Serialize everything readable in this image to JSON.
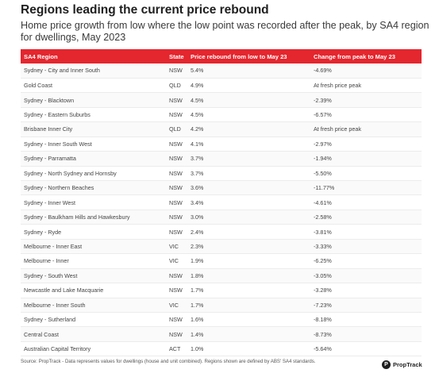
{
  "chart_data": {
    "type": "table",
    "title": "Regions leading the current price rebound",
    "subtitle": "Home price growth from low where the low point was recorded after the peak, by SA4 region for dwellings, May 2023",
    "columns": [
      "SA4 Region",
      "State",
      "Price rebound from low to May 23",
      "Change from peak to May 23"
    ],
    "rows": [
      {
        "region": "Sydney - City and Inner South",
        "state": "NSW",
        "rebound": "5.4%",
        "change": "-4.69%"
      },
      {
        "region": "Gold Coast",
        "state": "QLD",
        "rebound": "4.9%",
        "change": "At fresh price peak"
      },
      {
        "region": "Sydney - Blacktown",
        "state": "NSW",
        "rebound": "4.5%",
        "change": "-2.39%"
      },
      {
        "region": "Sydney - Eastern Suburbs",
        "state": "NSW",
        "rebound": "4.5%",
        "change": "-6.57%"
      },
      {
        "region": "Brisbane Inner City",
        "state": "QLD",
        "rebound": "4.2%",
        "change": "At fresh price peak"
      },
      {
        "region": "Sydney - Inner South West",
        "state": "NSW",
        "rebound": "4.1%",
        "change": "-2.97%"
      },
      {
        "region": "Sydney - Parramatta",
        "state": "NSW",
        "rebound": "3.7%",
        "change": "-1.94%"
      },
      {
        "region": "Sydney - North Sydney and Hornsby",
        "state": "NSW",
        "rebound": "3.7%",
        "change": "-5.50%"
      },
      {
        "region": "Sydney - Northern Beaches",
        "state": "NSW",
        "rebound": "3.6%",
        "change": "-11.77%"
      },
      {
        "region": "Sydney - Inner West",
        "state": "NSW",
        "rebound": "3.4%",
        "change": "-4.61%"
      },
      {
        "region": "Sydney - Baulkham Hills and Hawkesbury",
        "state": "NSW",
        "rebound": "3.0%",
        "change": "-2.58%"
      },
      {
        "region": "Sydney - Ryde",
        "state": "NSW",
        "rebound": "2.4%",
        "change": "-3.81%"
      },
      {
        "region": "Melbourne - Inner East",
        "state": "VIC",
        "rebound": "2.3%",
        "change": "-3.33%"
      },
      {
        "region": "Melbourne - Inner",
        "state": "VIC",
        "rebound": "1.9%",
        "change": "-6.25%"
      },
      {
        "region": "Sydney - South West",
        "state": "NSW",
        "rebound": "1.8%",
        "change": "-3.05%"
      },
      {
        "region": "Newcastle and Lake Macquarie",
        "state": "NSW",
        "rebound": "1.7%",
        "change": "-3.28%"
      },
      {
        "region": "Melbourne - Inner South",
        "state": "VIC",
        "rebound": "1.7%",
        "change": "-7.23%"
      },
      {
        "region": "Sydney - Sutherland",
        "state": "NSW",
        "rebound": "1.6%",
        "change": "-8.18%"
      },
      {
        "region": "Central Coast",
        "state": "NSW",
        "rebound": "1.4%",
        "change": "-8.73%"
      },
      {
        "region": "Australian Capital Territory",
        "state": "ACT",
        "rebound": "1.0%",
        "change": "-5.64%"
      }
    ]
  },
  "footer": {
    "source": "Source: PropTrack - Data represents values for dwellings (house and unit combined). Regions shown are defined by ABS' SA4 standards.",
    "logo_mark": "P",
    "logo_text": "PropTrack"
  },
  "colors": {
    "header_bg": "#e4262e",
    "header_text": "#ffffff"
  }
}
